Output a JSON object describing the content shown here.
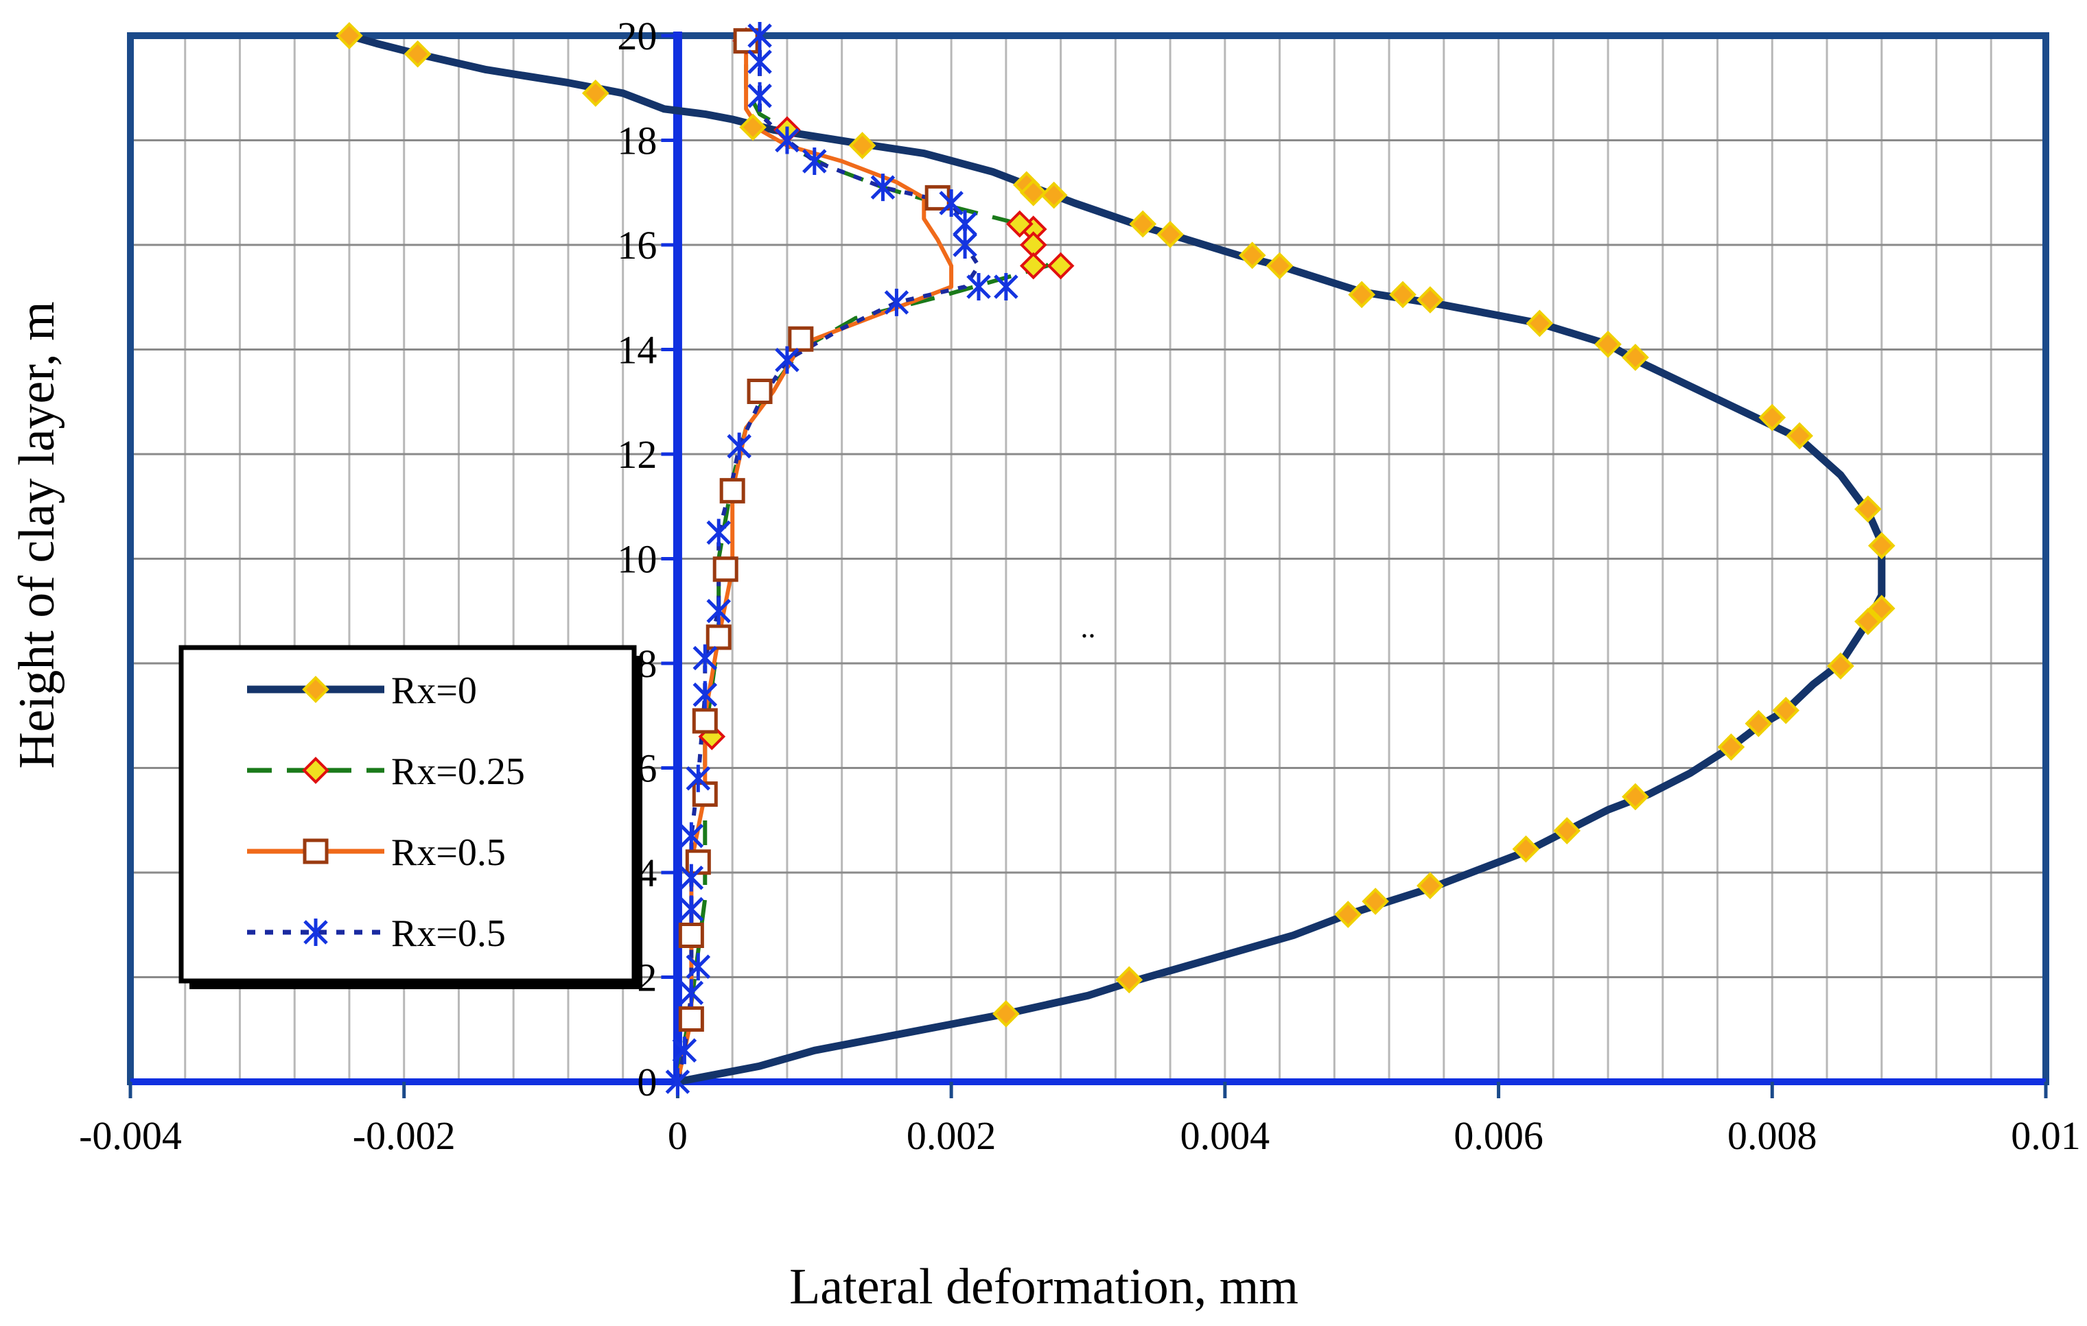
{
  "chart_data": {
    "type": "line",
    "title": "",
    "xlabel": "Lateral deformation, mm",
    "ylabel": "Height of clay layer, m",
    "xlim": [
      -0.004,
      0.01
    ],
    "ylim": [
      0,
      20
    ],
    "x_ticks": [
      -0.004,
      -0.002,
      0,
      0.002,
      0.004,
      0.006,
      0.008,
      0.01
    ],
    "x_tick_labels": [
      "-0.004",
      "-0.002",
      "0",
      "0.002",
      "0.004",
      "0.006",
      "0.008",
      "0.01"
    ],
    "y_ticks": [
      0,
      2,
      4,
      6,
      8,
      10,
      12,
      14,
      16,
      18,
      20
    ],
    "y_tick_labels": [
      "0",
      "2",
      "4",
      "6",
      "8",
      "10",
      "12",
      "14",
      "16",
      "18",
      "20"
    ],
    "x_minor_step": 0.0004,
    "grid": true,
    "legend_position": "left-middle",
    "annotation": "..",
    "annotation_at": {
      "x": 0.003,
      "y": 8.5
    },
    "series": [
      {
        "name": "Rx=0",
        "color": "#14346a",
        "marker": "diamond",
        "marker_fill": "#f7a81b",
        "marker_stroke": "#f0d000",
        "dash": "solid",
        "line": [
          [
            0,
            0
          ],
          [
            0.0006,
            0.3
          ],
          [
            0.001,
            0.6
          ],
          [
            0.002,
            1.1
          ],
          [
            0.0024,
            1.3
          ],
          [
            0.003,
            1.65
          ],
          [
            0.0033,
            1.9
          ],
          [
            0.0037,
            2.2
          ],
          [
            0.0041,
            2.5
          ],
          [
            0.0045,
            2.8
          ],
          [
            0.0049,
            3.2
          ],
          [
            0.0052,
            3.45
          ],
          [
            0.0055,
            3.7
          ],
          [
            0.0058,
            4.0
          ],
          [
            0.0062,
            4.4
          ],
          [
            0.0065,
            4.8
          ],
          [
            0.0068,
            5.2
          ],
          [
            0.0071,
            5.5
          ],
          [
            0.0074,
            5.9
          ],
          [
            0.0077,
            6.4
          ],
          [
            0.0079,
            6.8
          ],
          [
            0.0081,
            7.1
          ],
          [
            0.0083,
            7.6
          ],
          [
            0.0085,
            8.0
          ],
          [
            0.0086,
            8.4
          ],
          [
            0.0087,
            8.8
          ],
          [
            0.0088,
            9.3
          ],
          [
            0.0088,
            9.7
          ],
          [
            0.0088,
            10.3
          ],
          [
            0.0087,
            10.9
          ],
          [
            0.0085,
            11.6
          ],
          [
            0.0082,
            12.3
          ],
          [
            0.0078,
            12.8
          ],
          [
            0.0074,
            13.3
          ],
          [
            0.007,
            13.8
          ],
          [
            0.0068,
            14.1
          ],
          [
            0.0063,
            14.5
          ],
          [
            0.006,
            14.65
          ],
          [
            0.0056,
            14.85
          ],
          [
            0.005,
            15.1
          ],
          [
            0.0044,
            15.6
          ],
          [
            0.0041,
            15.8
          ],
          [
            0.0036,
            16.2
          ],
          [
            0.0034,
            16.35
          ],
          [
            0.0029,
            16.8
          ],
          [
            0.0027,
            17.0
          ],
          [
            0.0023,
            17.4
          ],
          [
            0.0018,
            17.75
          ],
          [
            0.0013,
            17.95
          ],
          [
            0.0007,
            18.2
          ],
          [
            0.0004,
            18.4
          ],
          [
            0.0002,
            18.5
          ],
          [
            -0.0001,
            18.6
          ],
          [
            -0.0004,
            18.9
          ],
          [
            -0.0008,
            19.1
          ],
          [
            -0.0014,
            19.35
          ],
          [
            -0.0019,
            19.65
          ],
          [
            -0.0022,
            19.85
          ],
          [
            -0.0024,
            20.0
          ]
        ],
        "points": [
          [
            -0.0024,
            20.0
          ],
          [
            -0.0019,
            19.65
          ],
          [
            -0.0006,
            18.9
          ],
          [
            0.00055,
            18.25
          ],
          [
            0.00135,
            17.9
          ],
          [
            0.00255,
            17.15
          ],
          [
            0.0026,
            17.0
          ],
          [
            0.00275,
            16.95
          ],
          [
            0.0034,
            16.4
          ],
          [
            0.0036,
            16.2
          ],
          [
            0.0042,
            15.8
          ],
          [
            0.0044,
            15.6
          ],
          [
            0.005,
            15.05
          ],
          [
            0.0053,
            15.05
          ],
          [
            0.0055,
            14.95
          ],
          [
            0.0063,
            14.5
          ],
          [
            0.0068,
            14.1
          ],
          [
            0.007,
            13.85
          ],
          [
            0.008,
            12.7
          ],
          [
            0.0082,
            12.35
          ],
          [
            0.0087,
            10.95
          ],
          [
            0.0088,
            10.25
          ],
          [
            0.0088,
            9.05
          ],
          [
            0.0087,
            8.8
          ],
          [
            0.0085,
            7.95
          ],
          [
            0.0081,
            7.1
          ],
          [
            0.0079,
            6.85
          ],
          [
            0.0077,
            6.4
          ],
          [
            0.007,
            5.45
          ],
          [
            0.0065,
            4.8
          ],
          [
            0.0062,
            4.45
          ],
          [
            0.0055,
            3.75
          ],
          [
            0.0051,
            3.45
          ],
          [
            0.0049,
            3.2
          ],
          [
            0.0033,
            1.95
          ],
          [
            0.0024,
            1.3
          ]
        ]
      },
      {
        "name": "Rx=0.25",
        "color": "#1a7a1a",
        "marker": "diamond",
        "marker_fill": "#f0e020",
        "marker_stroke": "#e01010",
        "dash": "long",
        "line": [
          [
            0,
            0
          ],
          [
            0.0001,
            1.5
          ],
          [
            0.0002,
            3.5
          ],
          [
            0.0002,
            5.2
          ],
          [
            0.0002,
            6.6
          ],
          [
            0.0003,
            8.5
          ],
          [
            0.0003,
            10.0
          ],
          [
            0.0004,
            11.5
          ],
          [
            0.0005,
            12.5
          ],
          [
            0.0007,
            13.3
          ],
          [
            0.0009,
            14.0
          ],
          [
            0.0013,
            14.6
          ],
          [
            0.0019,
            15.0
          ],
          [
            0.0023,
            15.3
          ],
          [
            0.0027,
            15.6
          ],
          [
            0.0026,
            15.9
          ],
          [
            0.0026,
            16.2
          ],
          [
            0.0025,
            16.4
          ],
          [
            0.0022,
            16.6
          ],
          [
            0.0019,
            16.8
          ],
          [
            0.0015,
            17.1
          ],
          [
            0.0011,
            17.5
          ],
          [
            0.0008,
            17.9
          ],
          [
            0.0008,
            18.2
          ],
          [
            0.0006,
            18.5
          ],
          [
            0.0005,
            19.0
          ],
          [
            0.0005,
            19.5
          ],
          [
            0.0005,
            20.0
          ]
        ],
        "points": [
          [
            0.00025,
            6.6
          ],
          [
            0.0026,
            16.3
          ],
          [
            0.0025,
            16.4
          ],
          [
            0.0026,
            16.0
          ],
          [
            0.0028,
            15.6
          ],
          [
            0.0026,
            15.6
          ],
          [
            0.0008,
            18.2
          ],
          [
            0.0005,
            19.9
          ]
        ]
      },
      {
        "name": "Rx=0.5",
        "color": "#f06a1a",
        "marker": "square",
        "marker_fill": "#ffffff",
        "marker_stroke": "#9a3a10",
        "dash": "solid",
        "line": [
          [
            0,
            0
          ],
          [
            0.0001,
            1.2
          ],
          [
            0.0001,
            2.8
          ],
          [
            0.0001,
            4.2
          ],
          [
            0.0002,
            5.5
          ],
          [
            0.0002,
            7.0
          ],
          [
            0.0003,
            8.5
          ],
          [
            0.0004,
            9.8
          ],
          [
            0.0004,
            11.3
          ],
          [
            0.0005,
            12.5
          ],
          [
            0.0007,
            13.2
          ],
          [
            0.0009,
            14.1
          ],
          [
            0.0013,
            14.5
          ],
          [
            0.0017,
            14.9
          ],
          [
            0.002,
            15.2
          ],
          [
            0.002,
            15.6
          ],
          [
            0.0019,
            16.1
          ],
          [
            0.0018,
            16.5
          ],
          [
            0.0018,
            16.9
          ],
          [
            0.0016,
            17.2
          ],
          [
            0.0012,
            17.6
          ],
          [
            0.0008,
            17.9
          ],
          [
            0.0006,
            18.2
          ],
          [
            0.0005,
            18.6
          ],
          [
            0.0005,
            19.2
          ],
          [
            0.0005,
            20.0
          ]
        ],
        "points": [
          [
            0.0001,
            1.2
          ],
          [
            0.0001,
            2.8
          ],
          [
            0.00015,
            4.2
          ],
          [
            0.0002,
            5.5
          ],
          [
            0.0002,
            6.9
          ],
          [
            0.0003,
            8.5
          ],
          [
            0.00035,
            9.8
          ],
          [
            0.0004,
            11.3
          ],
          [
            0.0006,
            13.2
          ],
          [
            0.0009,
            14.2
          ],
          [
            0.0019,
            16.9
          ],
          [
            0.0005,
            19.9
          ]
        ]
      },
      {
        "name": "Rx=0.5",
        "color": "#1a2aa0",
        "marker": "asterisk",
        "marker_fill": "none",
        "marker_stroke": "#1434e0",
        "dash": "dot",
        "line": [
          [
            0,
            0
          ],
          [
            5e-05,
            0.6
          ],
          [
            0.0001,
            1.7
          ],
          [
            0.0001,
            2.2
          ],
          [
            0.0001,
            3.3
          ],
          [
            0.0001,
            3.9
          ],
          [
            0.0001,
            4.7
          ],
          [
            0.00015,
            5.8
          ],
          [
            0.0002,
            7.4
          ],
          [
            0.0002,
            8.1
          ],
          [
            0.0003,
            9.0
          ],
          [
            0.0003,
            10.5
          ],
          [
            0.0004,
            11.5
          ],
          [
            0.00045,
            12.15
          ],
          [
            0.0006,
            13.0
          ],
          [
            0.0008,
            13.8
          ],
          [
            0.0012,
            14.4
          ],
          [
            0.0016,
            14.9
          ],
          [
            0.0021,
            15.2
          ],
          [
            0.0022,
            15.6
          ],
          [
            0.0021,
            16.0
          ],
          [
            0.0021,
            16.4
          ],
          [
            0.002,
            16.8
          ],
          [
            0.0015,
            17.1
          ],
          [
            0.001,
            17.6
          ],
          [
            0.0008,
            18.0
          ],
          [
            0.0006,
            18.5
          ],
          [
            0.0006,
            18.85
          ],
          [
            0.0006,
            19.5
          ],
          [
            0.0006,
            20.0
          ]
        ],
        "points": [
          [
            0.0,
            0.0
          ],
          [
            5e-05,
            0.6
          ],
          [
            0.0001,
            1.7
          ],
          [
            0.00015,
            2.2
          ],
          [
            0.0001,
            3.3
          ],
          [
            0.0001,
            3.9
          ],
          [
            0.0001,
            4.7
          ],
          [
            0.00015,
            5.8
          ],
          [
            0.0002,
            7.4
          ],
          [
            0.0002,
            8.1
          ],
          [
            0.0003,
            9.0
          ],
          [
            0.0003,
            10.5
          ],
          [
            0.00045,
            12.15
          ],
          [
            0.0008,
            13.8
          ],
          [
            0.0016,
            14.9
          ],
          [
            0.0022,
            15.2
          ],
          [
            0.0024,
            15.2
          ],
          [
            0.0021,
            16.0
          ],
          [
            0.0021,
            16.4
          ],
          [
            0.002,
            16.8
          ],
          [
            0.0015,
            17.1
          ],
          [
            0.001,
            17.6
          ],
          [
            0.0008,
            18.0
          ],
          [
            0.0006,
            18.85
          ],
          [
            0.0006,
            19.5
          ],
          [
            0.0006,
            20.0
          ]
        ]
      }
    ]
  }
}
